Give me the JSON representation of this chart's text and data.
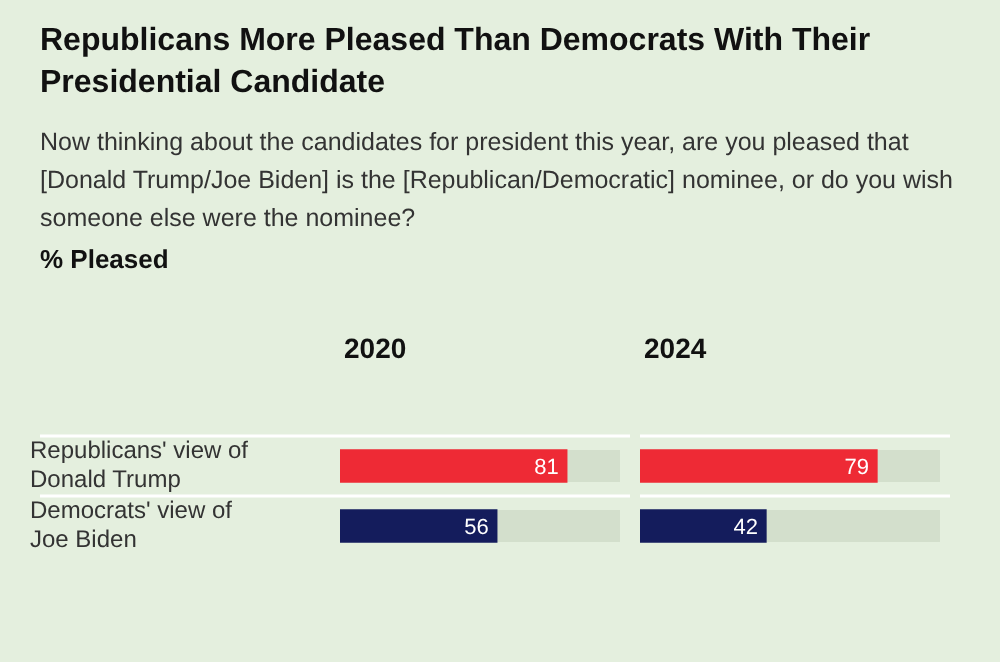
{
  "chart_data": [
    {
      "type": "other",
      "title": "Republicans More Pleased Than Democrats With Their Presidential Candidate",
      "subtitle": "Now thinking about the candidates for president this year, are you pleased that [Donald Trump/Joe Biden] is the [Republican/Democratic] nominee, or do you wish someone else were the nominee?",
      "annotations": [
        "% Pleased"
      ]
    },
    {
      "type": "bar",
      "orientation": "horizontal",
      "title": "2020",
      "categories": [
        "Republicans' view of Donald Trump",
        "Democrats' view of Joe Biden"
      ],
      "values": [
        81,
        56
      ],
      "colors": [
        "#ee2a35",
        "#141c5c"
      ],
      "xlim": [
        0,
        100
      ],
      "data_labels": true,
      "grid": "y",
      "tick_labels": "y"
    },
    {
      "type": "bar",
      "orientation": "horizontal",
      "title": "2024",
      "categories": [
        null,
        null
      ],
      "values": [
        79,
        42
      ],
      "colors": [
        "#ee2a35",
        "#141c5c"
      ],
      "xlim": [
        0,
        100
      ],
      "data_labels": true,
      "grid": "y",
      "tick_labels": false
    }
  ]
}
